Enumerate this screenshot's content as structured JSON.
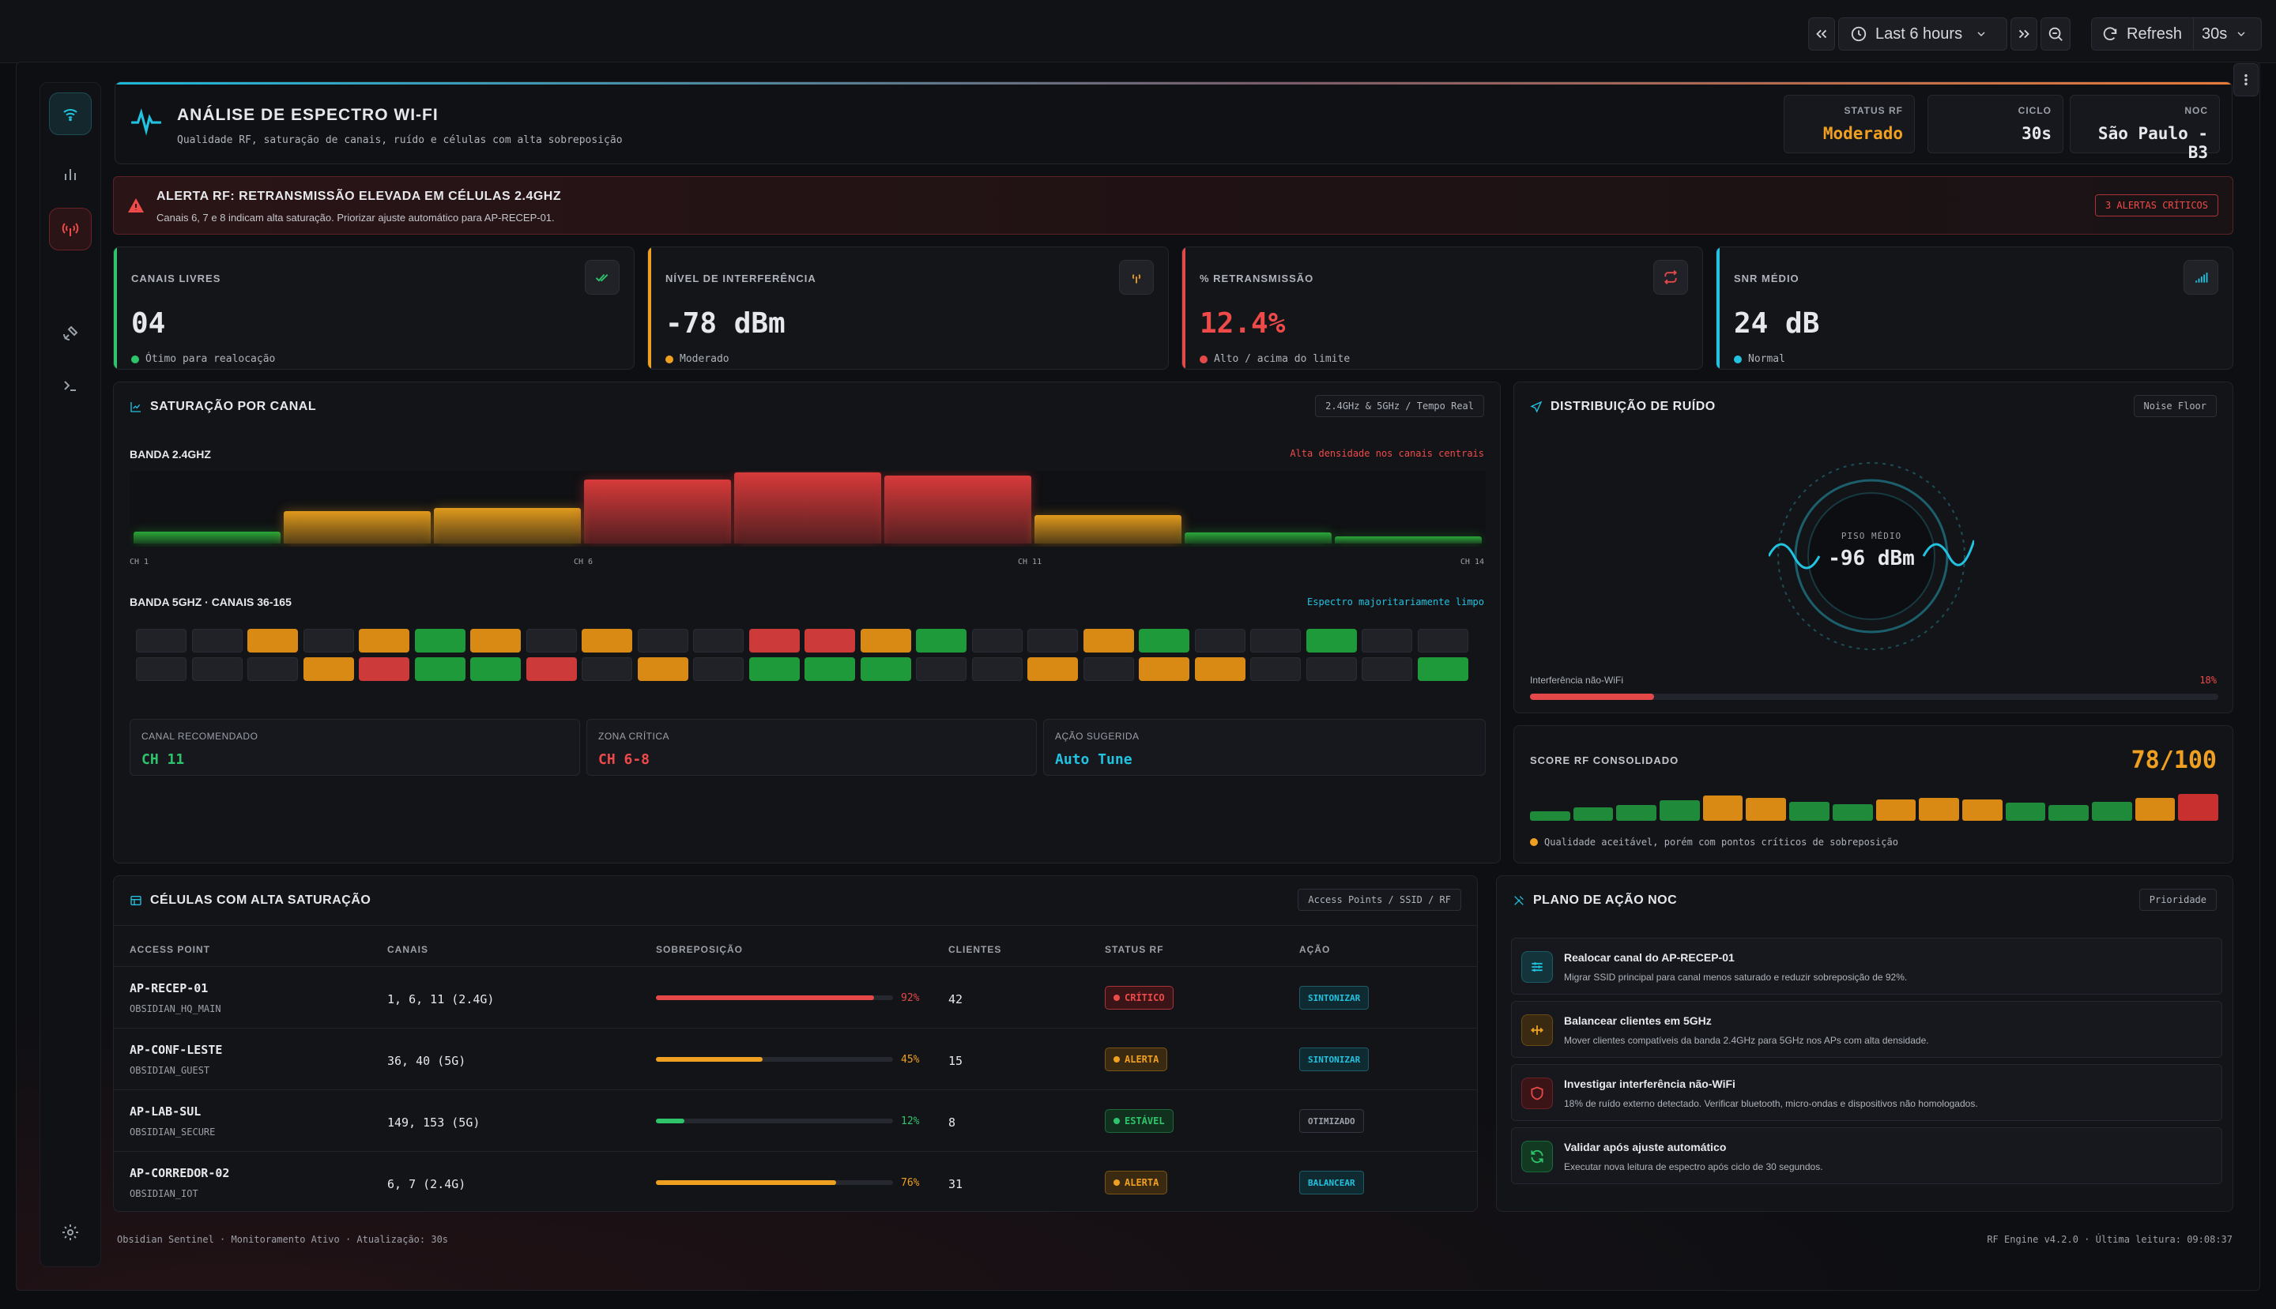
{
  "toolbar": {
    "time_range": "Last 6 hours",
    "refresh_label": "Refresh",
    "refresh_interval": "30s"
  },
  "header": {
    "title": "ANÁLISE DE ESPECTRO WI-FI",
    "subtitle": "Qualidade RF, saturação de canais, ruído e células com alta sobreposição",
    "stats": [
      {
        "label": "STATUS RF",
        "value": "Moderado",
        "color": "#f0a020"
      },
      {
        "label": "CICLO",
        "value": "30s",
        "color": "#e6e8ec"
      },
      {
        "label": "NOC",
        "value": "São Paulo - B3",
        "color": "#e6e8ec"
      }
    ]
  },
  "alert": {
    "title": "ALERTA RF: RETRANSMISSÃO ELEVADA EM CÉLULAS 2.4GHZ",
    "message": "Canais 6, 7 e 8 indicam alta saturação. Priorizar ajuste automático para AP-RECEP-01.",
    "badge": "3 ALERTAS CRÍTICOS"
  },
  "kpis": [
    {
      "label": "CANAIS LIVRES",
      "value": "04",
      "sub": "Ótimo para realocação",
      "color": "#2ec46b",
      "icon": "check-double-icon",
      "value_color": "#ffffff"
    },
    {
      "label": "NÍVEL DE INTERFERÊNCIA",
      "value": "-78 dBm",
      "sub": "Moderado",
      "color": "#f0a020",
      "icon": "antenna-icon",
      "value_color": "#ffffff"
    },
    {
      "label": "% RETRANSMISSÃO",
      "value": "12.4%",
      "sub": "Alto / acima do limite",
      "color": "#e54848",
      "icon": "repeat-icon",
      "value_color": "#ef4a4a"
    },
    {
      "label": "SNR MÉDIO",
      "value": "24 dB",
      "sub": "Normal",
      "color": "#22c2e0",
      "icon": "signal-bars-icon",
      "value_color": "#ffffff"
    }
  ],
  "saturation": {
    "title": "SATURAÇÃO POR CANAL",
    "pill": "2.4GHz & 5GHz / Tempo Real",
    "band24_label": "BANDA 2.4GHZ",
    "band24_note": "Alta densidade nos canais centrais",
    "band24_ticks": [
      "CH 1",
      "CH 6",
      "CH 11",
      "CH 14"
    ],
    "band24_levels": [
      0.17,
      0.45,
      0.5,
      0.9,
      1.0,
      0.95,
      0.4,
      0.15,
      0.1
    ],
    "band24_colors": [
      "#2aa838",
      "#e09a1c",
      "#e09a1c",
      "#d83a3a",
      "#d83a3a",
      "#d83a3a",
      "#e09a1c",
      "#2aa838",
      "#2aa838"
    ],
    "band5_label": "BANDA 5GHZ · CANAIS 36-165",
    "band5_note": "Espectro majoritariamente limpo",
    "band5_rows": [
      [
        "e",
        "e",
        "o",
        "e",
        "o",
        "g",
        "o",
        "e",
        "o",
        "e",
        "e",
        "r",
        "r",
        "o",
        "g",
        "e",
        "e",
        "o",
        "g",
        "e",
        "e",
        "g",
        "e",
        "e"
      ],
      [
        "e",
        "e",
        "e",
        "o",
        "r",
        "g",
        "g",
        "r",
        "e",
        "o",
        "e",
        "g",
        "g",
        "g",
        "e",
        "e",
        "o",
        "e",
        "o",
        "o",
        "e",
        "e",
        "e",
        "g"
      ]
    ],
    "summary": [
      {
        "label": "CANAL RECOMENDADO",
        "value": "CH 11",
        "color": "#2ec46b"
      },
      {
        "label": "ZONA CRÍTICA",
        "value": "CH 6-8",
        "color": "#ef4a4a"
      },
      {
        "label": "AÇÃO SUGERIDA",
        "value": "Auto Tune",
        "color": "#22c2e0"
      }
    ]
  },
  "noise": {
    "title": "DISTRIBUIÇÃO DE RUÍDO",
    "pill": "Noise Floor",
    "gauge_label": "PISO MÉDIO",
    "gauge_value": "-96 dBm",
    "interf_label": "Interferência não-WiFi",
    "interf_value": "18%",
    "interf_level": 0.18
  },
  "score": {
    "title": "SCORE RF CONSOLIDADO",
    "value": "78/100",
    "bars": [
      {
        "h": 0.35,
        "c": "#1f8a3a"
      },
      {
        "h": 0.5,
        "c": "#1f8a3a"
      },
      {
        "h": 0.6,
        "c": "#1f8a3a"
      },
      {
        "h": 0.75,
        "c": "#1f8a3a"
      },
      {
        "h": 0.95,
        "c": "#d98a14"
      },
      {
        "h": 0.85,
        "c": "#d98a14"
      },
      {
        "h": 0.72,
        "c": "#1f8a3a"
      },
      {
        "h": 0.62,
        "c": "#1f8a3a"
      },
      {
        "h": 0.78,
        "c": "#d98a14"
      },
      {
        "h": 0.85,
        "c": "#d98a14"
      },
      {
        "h": 0.8,
        "c": "#d98a14"
      },
      {
        "h": 0.68,
        "c": "#1f8a3a"
      },
      {
        "h": 0.6,
        "c": "#1f8a3a"
      },
      {
        "h": 0.7,
        "c": "#1f8a3a"
      },
      {
        "h": 0.85,
        "c": "#d98a14"
      },
      {
        "h": 1.0,
        "c": "#c83030"
      }
    ],
    "note": "Qualidade aceitável, porém com pontos críticos de sobreposição"
  },
  "cells": {
    "title": "CÉLULAS COM ALTA SATURAÇÃO",
    "pill": "Access Points / SSID / RF",
    "columns": [
      "ACCESS POINT",
      "CANAIS",
      "SOBREPOSIÇÃO",
      "CLIENTES",
      "STATUS RF",
      "AÇÃO"
    ],
    "rows": [
      {
        "ap": "AP-RECEP-01",
        "ssid": "OBSIDIAN_HQ_MAIN",
        "channels": "1, 6, 11 (2.4G)",
        "overlap": "92%",
        "level": 0.92,
        "color": "#e54848",
        "clients": "42",
        "status": "CRÍTICO",
        "action": "SINTONIZAR",
        "action_color": "#22c2e0"
      },
      {
        "ap": "AP-CONF-LESTE",
        "ssid": "OBSIDIAN_GUEST",
        "channels": "36, 40 (5G)",
        "overlap": "45%",
        "level": 0.45,
        "color": "#f0a020",
        "clients": "15",
        "status": "ALERTA",
        "action": "SINTONIZAR",
        "action_color": "#22c2e0"
      },
      {
        "ap": "AP-LAB-SUL",
        "ssid": "OBSIDIAN_SECURE",
        "channels": "149, 153 (5G)",
        "overlap": "12%",
        "level": 0.12,
        "color": "#2ec46b",
        "clients": "8",
        "status": "ESTÁVEL",
        "action": "OTIMIZADO",
        "action_color": "#9ca0a8"
      },
      {
        "ap": "AP-CORREDOR-02",
        "ssid": "OBSIDIAN_IOT",
        "channels": "6, 7 (2.4G)",
        "overlap": "76%",
        "level": 0.76,
        "color": "#f0a020",
        "clients": "31",
        "status": "ALERTA",
        "action": "BALANCEAR",
        "action_color": "#22c2e0"
      }
    ]
  },
  "plan": {
    "title": "PLANO DE AÇÃO NOC",
    "pill": "Prioridade",
    "items": [
      {
        "title": "Realocar canal do AP-RECEP-01",
        "desc": "Migrar SSID principal para canal menos saturado e reduzir sobreposição de 92%.",
        "color": "#22c2e0",
        "icon": "sliders-icon"
      },
      {
        "title": "Balancear clientes em 5GHz",
        "desc": "Mover clientes compatíveis da banda 2.4GHz para 5GHz nos APs com alta densidade.",
        "color": "#f0a020",
        "icon": "arrows-split-icon"
      },
      {
        "title": "Investigar interferência não-WiFi",
        "desc": "18% de ruído externo detectado. Verificar bluetooth, micro-ondas e dispositivos não homologados.",
        "color": "#e54848",
        "icon": "shield-icon"
      },
      {
        "title": "Validar após ajuste automático",
        "desc": "Executar nova leitura de espectro após ciclo de 30 segundos.",
        "color": "#2ec46b",
        "icon": "refresh-icon"
      }
    ]
  },
  "footer": {
    "left": "Obsidian Sentinel · Monitoramento Ativo · Atualização: 30s",
    "right": "RF Engine v4.2.0 · Última leitura: 09:08:37"
  }
}
